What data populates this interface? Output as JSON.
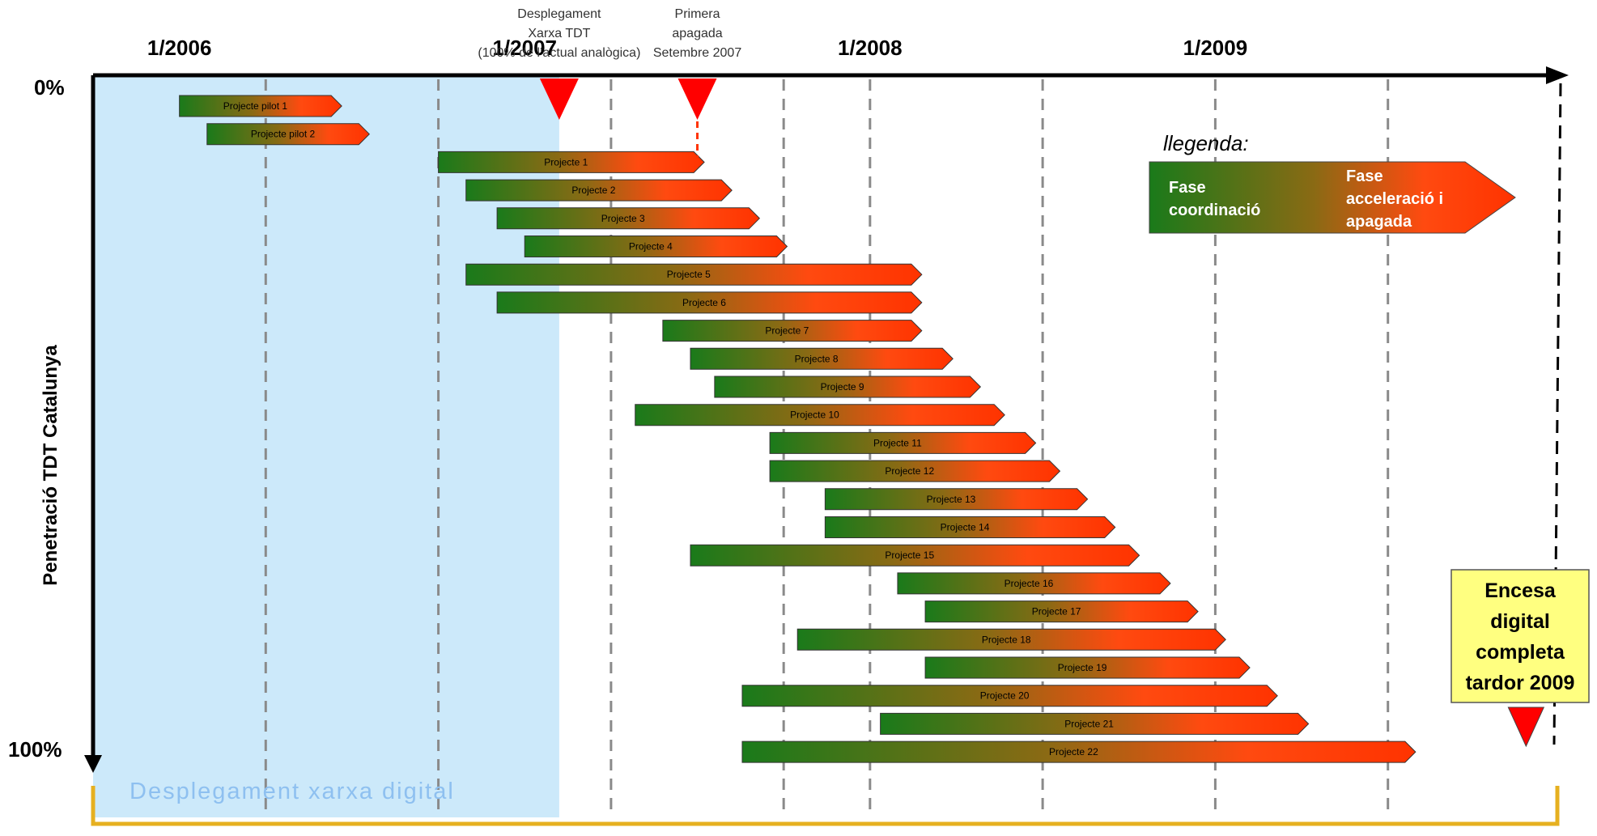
{
  "chart_data": {
    "type": "gantt",
    "ylabel": "Penetració TDT Catalunya",
    "y_top_label": "0%",
    "y_bottom_label": "100%",
    "x_ticks": [
      {
        "label": "1/2006",
        "t": 2006.0
      },
      {
        "label": "1/2007",
        "t": 2007.0
      },
      {
        "label": "1/2008",
        "t": 2008.0
      },
      {
        "label": "1/2009",
        "t": 2009.0
      }
    ],
    "x_range": [
      2005.75,
      2010.0
    ],
    "gridlines": [
      2006.25,
      2006.75,
      2007.25,
      2007.75,
      2008.0,
      2008.5,
      2009.0,
      2009.5
    ],
    "end_marker": 2010.0,
    "shaded_phase": {
      "label": "Desplegament xarxa digital",
      "start": 2005.75,
      "end": 2007.1
    },
    "milestones": [
      {
        "lines": [
          "Desplegament",
          "Xarxa TDT",
          "(100% de l’actual analògica)"
        ],
        "t": 2007.1
      },
      {
        "lines": [
          "Primera",
          "apagada",
          "Setembre 2007"
        ],
        "t": 2007.5
      }
    ],
    "legend": {
      "title": "llegenda:",
      "start_label": [
        "Fase",
        "coordinació"
      ],
      "end_label": [
        "Fase",
        "acceleració i",
        "apagada"
      ],
      "start_color": "#1a7a1a",
      "end_color": "#ff3300"
    },
    "final_box": {
      "lines": [
        "Encesa",
        "digital",
        "completa",
        "tardor 2009"
      ],
      "t": 2009.9
    },
    "colors": {
      "phase_fill": "#cce9fa",
      "bracket": "#e6b020",
      "marker": "#ff0000",
      "box_fill": "#ffff80"
    },
    "series": [
      {
        "name": "Projecte pilot 1",
        "start": 2006.0,
        "end": 2006.47
      },
      {
        "name": "Projecte pilot 2",
        "start": 2006.08,
        "end": 2006.55
      },
      {
        "name": "Projecte 1",
        "start": 2006.75,
        "end": 2007.52
      },
      {
        "name": "Projecte 2",
        "start": 2006.83,
        "end": 2007.6
      },
      {
        "name": "Projecte 3",
        "start": 2006.92,
        "end": 2007.68
      },
      {
        "name": "Projecte 4",
        "start": 2007.0,
        "end": 2007.76
      },
      {
        "name": "Projecte 5",
        "start": 2006.83,
        "end": 2008.15
      },
      {
        "name": "Projecte 6",
        "start": 2006.92,
        "end": 2008.15
      },
      {
        "name": "Projecte 7",
        "start": 2007.4,
        "end": 2008.15
      },
      {
        "name": "Projecte 8",
        "start": 2007.48,
        "end": 2008.24
      },
      {
        "name": "Projecte 9",
        "start": 2007.55,
        "end": 2008.32
      },
      {
        "name": "Projecte 10",
        "start": 2007.32,
        "end": 2008.39
      },
      {
        "name": "Projecte 11",
        "start": 2007.71,
        "end": 2008.48
      },
      {
        "name": "Projecte 12",
        "start": 2007.71,
        "end": 2008.55
      },
      {
        "name": "Projecte 13",
        "start": 2007.87,
        "end": 2008.63
      },
      {
        "name": "Projecte 14",
        "start": 2007.87,
        "end": 2008.71
      },
      {
        "name": "Projecte 15",
        "start": 2007.48,
        "end": 2008.78
      },
      {
        "name": "Projecte 16",
        "start": 2008.08,
        "end": 2008.87
      },
      {
        "name": "Projecte 17",
        "start": 2008.16,
        "end": 2008.95
      },
      {
        "name": "Projecte 18",
        "start": 2007.79,
        "end": 2009.03
      },
      {
        "name": "Projecte 19",
        "start": 2008.16,
        "end": 2009.1
      },
      {
        "name": "Projecte 20",
        "start": 2007.63,
        "end": 2009.18
      },
      {
        "name": "Projecte 21",
        "start": 2008.03,
        "end": 2009.27
      },
      {
        "name": "Projecte 22",
        "start": 2007.63,
        "end": 2009.58
      }
    ]
  }
}
